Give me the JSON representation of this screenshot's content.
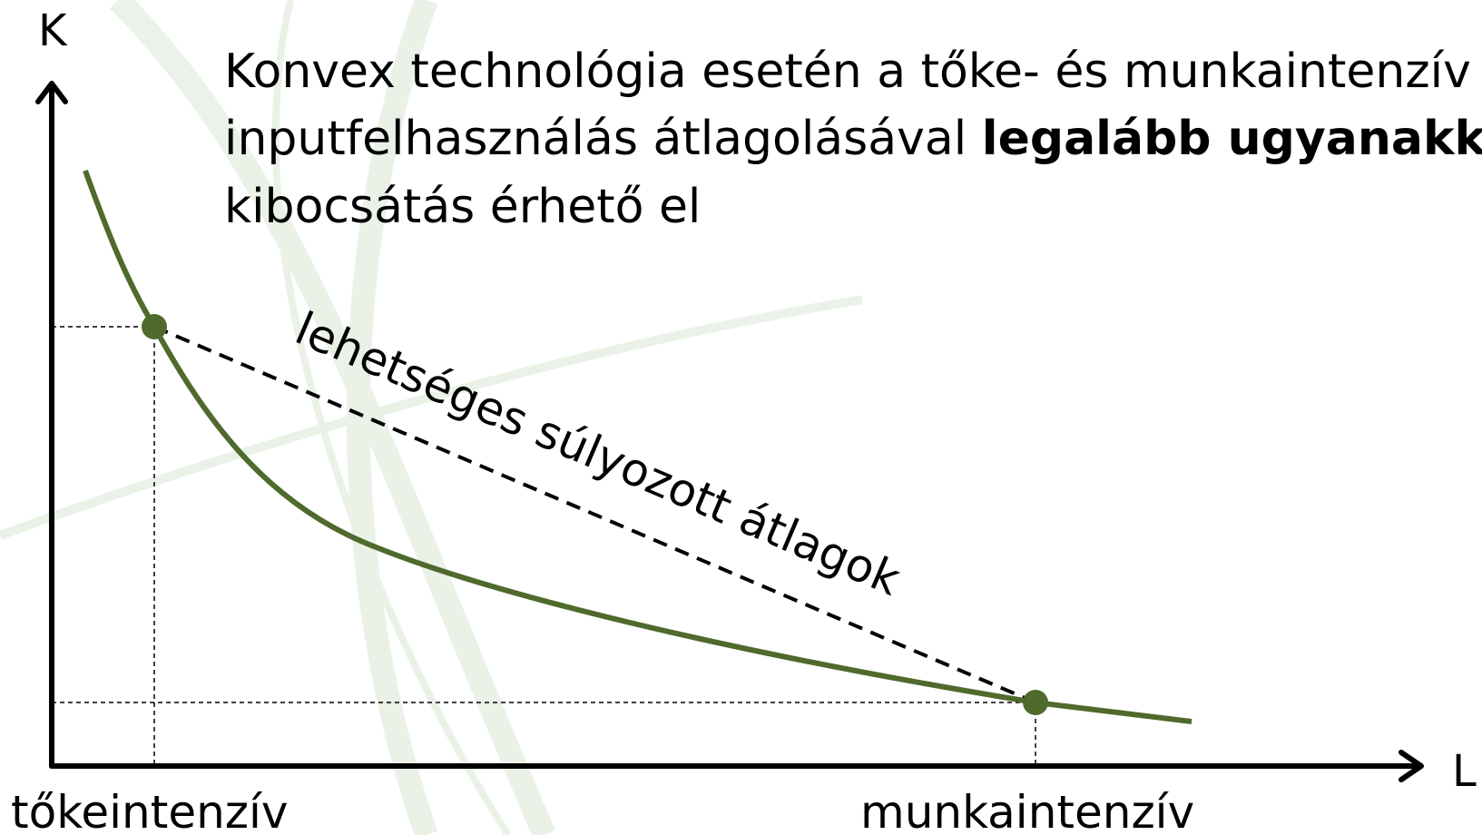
{
  "axes": {
    "y_label": "K",
    "x_label": "L"
  },
  "title": {
    "line1": "Konvex technológia esetén a tőke- és munkaintenzív",
    "line2": "inputfelhasználás átlagolásával ",
    "line2_bold": "legalább ugyanakkora",
    "line3": "kibocsátás érhető el"
  },
  "dashed_line_label": "lehetséges súlyozott átlagok",
  "points": {
    "left": "tőkeintenzív",
    "right": "munkaintenzív"
  }
}
